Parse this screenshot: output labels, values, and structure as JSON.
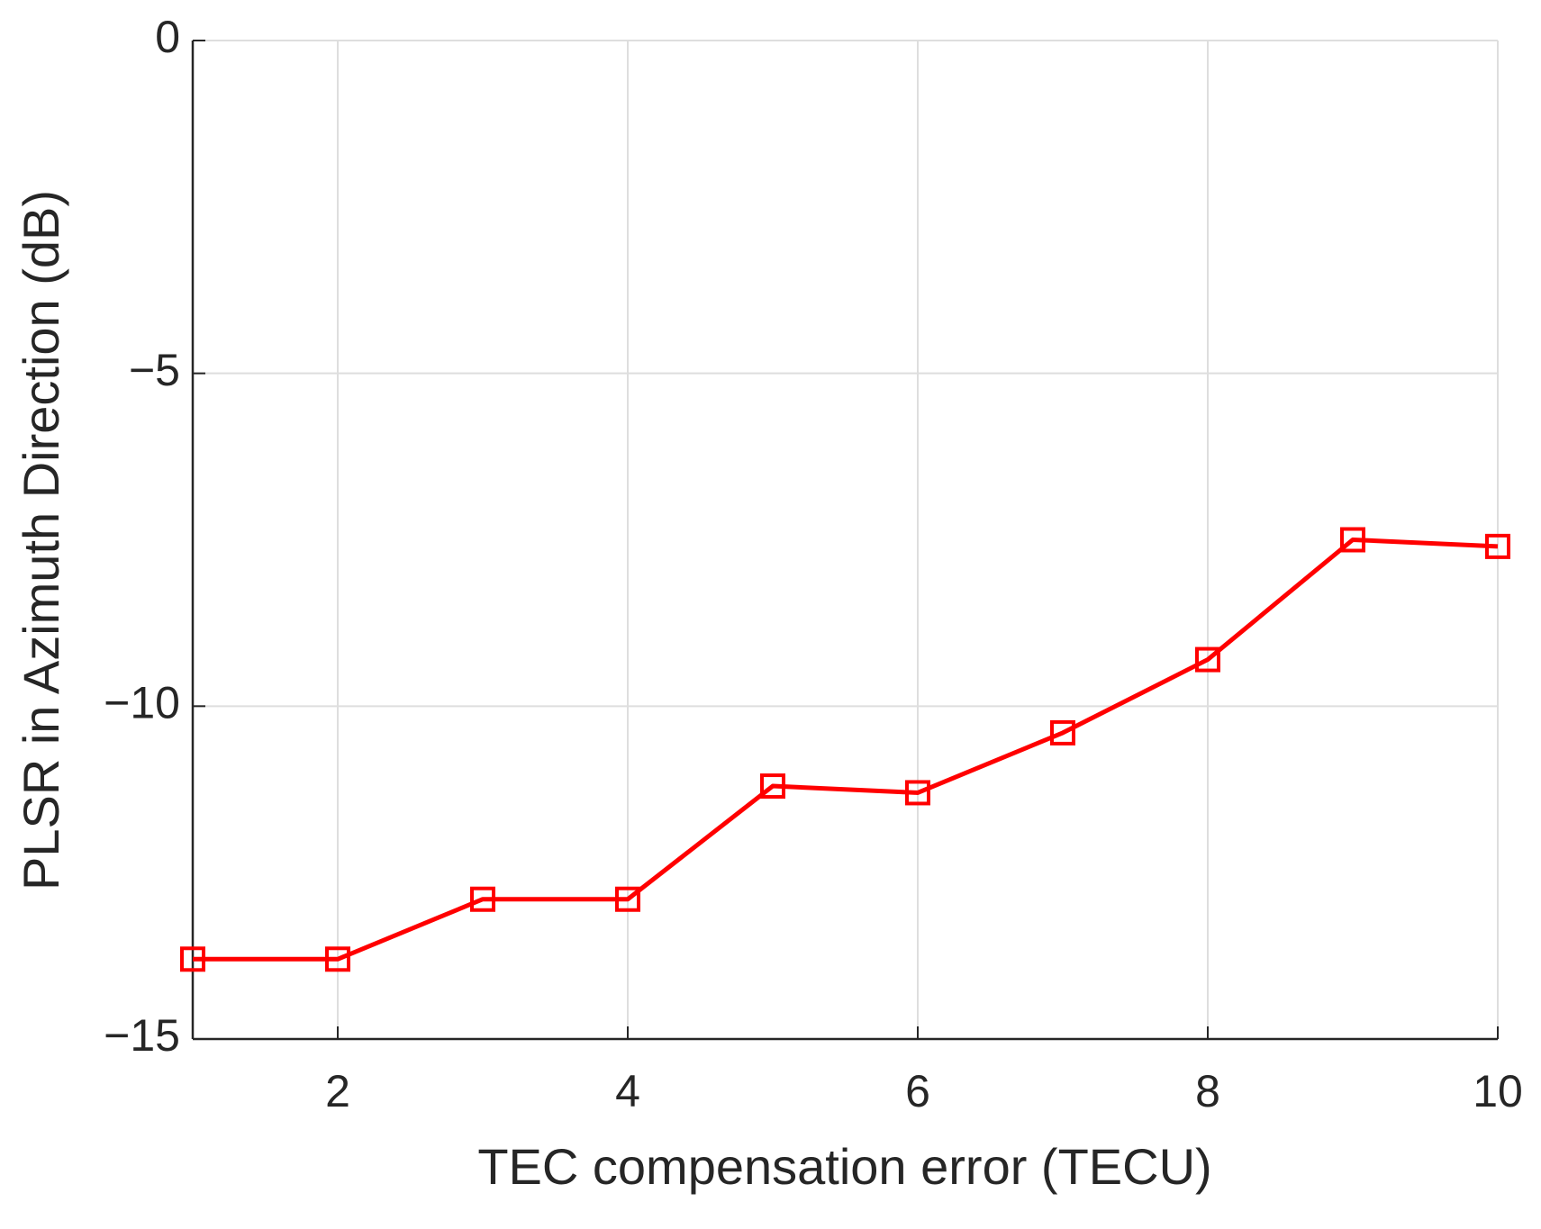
{
  "chart_data": {
    "type": "line",
    "x_label": "TEC compensation error (TECU)",
    "y_label": "PLSR in Azimuth Direction (dB)",
    "x": [
      1,
      2,
      3,
      4,
      5,
      6,
      7,
      8,
      9,
      10
    ],
    "series": [
      {
        "name": "PLSR",
        "color": "#ff0000",
        "marker": "square",
        "values": [
          -13.8,
          -13.8,
          -12.9,
          -12.9,
          -11.2,
          -11.3,
          -10.4,
          -9.3,
          -7.5,
          -7.6
        ]
      }
    ],
    "xlim": [
      1,
      10
    ],
    "xticks": [
      2,
      4,
      6,
      8,
      10
    ],
    "ylim": [
      -15,
      0
    ],
    "yticks": [
      {
        "value": -15,
        "label": "−15"
      },
      {
        "value": -10,
        "label": "−10"
      },
      {
        "value": -5,
        "label": "−5"
      },
      0
    ],
    "grid": true,
    "legend": false
  }
}
